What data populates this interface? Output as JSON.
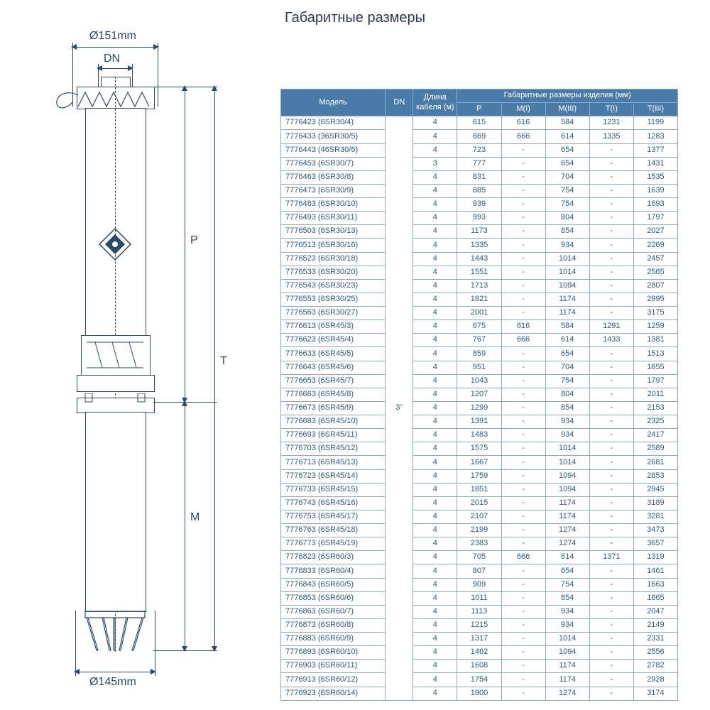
{
  "title": "Габаритные размеры",
  "diagram": {
    "diameter_top": "Ø151mm",
    "dn_label": "DN",
    "diameter_bottom": "Ø145mm",
    "dim_P": "P",
    "dim_T": "T",
    "dim_M": "M"
  },
  "table": {
    "header": {
      "model": "Модель",
      "dn": "DN",
      "cable": "Длина\nкабеля (м)",
      "dims_group": "Габаритные размеры изделия (мм)",
      "p": "P",
      "m1": "M(I)",
      "m3": "M(III)",
      "t1": "T(I)",
      "t3": "T(III)"
    },
    "dn_value": "3\"",
    "rows": [
      {
        "model": "7776423 (6SR30/4)",
        "cable": "4",
        "p": "615",
        "m1": "616",
        "m3": "584",
        "t1": "1231",
        "t3": "1199"
      },
      {
        "model": "7776433 (36SR30/5)",
        "cable": "4",
        "p": "669",
        "m1": "666",
        "m3": "614",
        "t1": "1335",
        "t3": "1283"
      },
      {
        "model": "7776443 (46SR30/6)",
        "cable": "4",
        "p": "723",
        "m1": "-",
        "m3": "654",
        "t1": "-",
        "t3": "1377"
      },
      {
        "model": "7776453 (6SR30/7)",
        "cable": "3",
        "p": "777",
        "m1": "-",
        "m3": "654",
        "t1": "-",
        "t3": "1431"
      },
      {
        "model": "7776463 (6SR30/8)",
        "cable": "4",
        "p": "831",
        "m1": "-",
        "m3": "704",
        "t1": "-",
        "t3": "1535"
      },
      {
        "model": "7776473 (6SR30/9)",
        "cable": "4",
        "p": "885",
        "m1": "-",
        "m3": "754",
        "t1": "-",
        "t3": "1639"
      },
      {
        "model": "7776483 (6SR30/10)",
        "cable": "4",
        "p": "939",
        "m1": "-",
        "m3": "754",
        "t1": "-",
        "t3": "1693"
      },
      {
        "model": "7776493 (6SR30/11)",
        "cable": "4",
        "p": "993",
        "m1": "-",
        "m3": "804",
        "t1": "-",
        "t3": "1797"
      },
      {
        "model": "7776503 (6SR30/13)",
        "cable": "4",
        "p": "1173",
        "m1": "-",
        "m3": "854",
        "t1": "-",
        "t3": "2027"
      },
      {
        "model": "7776513 (6SR30/16)",
        "cable": "4",
        "p": "1335",
        "m1": "-",
        "m3": "934",
        "t1": "-",
        "t3": "2269"
      },
      {
        "model": "7776523 (6SR30/18)",
        "cable": "4",
        "p": "1443",
        "m1": "-",
        "m3": "1014",
        "t1": "-",
        "t3": "2457"
      },
      {
        "model": "7776533 (6SR30/20)",
        "cable": "4",
        "p": "1551",
        "m1": "-",
        "m3": "1014",
        "t1": "-",
        "t3": "2565"
      },
      {
        "model": "7776543 (6SR30/23)",
        "cable": "4",
        "p": "1713",
        "m1": "-",
        "m3": "1094",
        "t1": "-",
        "t3": "2807"
      },
      {
        "model": "7776553 (6SR30/25)",
        "cable": "4",
        "p": "1821",
        "m1": "-",
        "m3": "1174",
        "t1": "-",
        "t3": "2995"
      },
      {
        "model": "7776563 (6SR30/27)",
        "cable": "4",
        "p": "2001",
        "m1": "-",
        "m3": "1174",
        "t1": "-",
        "t3": "3175"
      },
      {
        "model": "7776613 (6SR45/3)",
        "cable": "4",
        "p": "675",
        "m1": "616",
        "m3": "584",
        "t1": "1291",
        "t3": "1259"
      },
      {
        "model": "7776623 (6SR45/4)",
        "cable": "4",
        "p": "767",
        "m1": "666",
        "m3": "614",
        "t1": "1433",
        "t3": "1381"
      },
      {
        "model": "7776633 (6SR45/5)",
        "cable": "4",
        "p": "859",
        "m1": "-",
        "m3": "654",
        "t1": "-",
        "t3": "1513"
      },
      {
        "model": "7776643 (6SR45/6)",
        "cable": "4",
        "p": "951",
        "m1": "-",
        "m3": "704",
        "t1": "-",
        "t3": "1655"
      },
      {
        "model": "7776653 (6SR45/7)",
        "cable": "4",
        "p": "1043",
        "m1": "-",
        "m3": "754",
        "t1": "-",
        "t3": "1797"
      },
      {
        "model": "7776663 (6SR45/8)",
        "cable": "4",
        "p": "1207",
        "m1": "-",
        "m3": "804",
        "t1": "-",
        "t3": "2011"
      },
      {
        "model": "7776673 (6SR45/9)",
        "cable": "4",
        "p": "1299",
        "m1": "-",
        "m3": "854",
        "t1": "-",
        "t3": "2153"
      },
      {
        "model": "7776683 (6SR45/10)",
        "cable": "4",
        "p": "1391",
        "m1": "-",
        "m3": "934",
        "t1": "-",
        "t3": "2325"
      },
      {
        "model": "7776693 (6SR45/11)",
        "cable": "4",
        "p": "1483",
        "m1": "-",
        "m3": "934",
        "t1": "-",
        "t3": "2417"
      },
      {
        "model": "7776703 (6SR45/12)",
        "cable": "4",
        "p": "1575",
        "m1": "-",
        "m3": "1014",
        "t1": "-",
        "t3": "2589"
      },
      {
        "model": "7776713 (6SR45/13)",
        "cable": "4",
        "p": "1667",
        "m1": "-",
        "m3": "1014",
        "t1": "-",
        "t3": "2681"
      },
      {
        "model": "7776723 (6SR45/14)",
        "cable": "4",
        "p": "1759",
        "m1": "-",
        "m3": "1094",
        "t1": "-",
        "t3": "2853"
      },
      {
        "model": "7776733 (6SR45/15)",
        "cable": "4",
        "p": "1851",
        "m1": "-",
        "m3": "1094",
        "t1": "-",
        "t3": "2945"
      },
      {
        "model": "7776743 (6SR45/16)",
        "cable": "4",
        "p": "2015",
        "m1": "-",
        "m3": "1174",
        "t1": "-",
        "t3": "3189"
      },
      {
        "model": "7776753 (6SR45/17)",
        "cable": "4",
        "p": "2107",
        "m1": "-",
        "m3": "1174",
        "t1": "-",
        "t3": "3281"
      },
      {
        "model": "7776763 (6SR45/18)",
        "cable": "4",
        "p": "2199",
        "m1": "-",
        "m3": "1274",
        "t1": "-",
        "t3": "3473"
      },
      {
        "model": "7776773 (6SR45/19)",
        "cable": "4",
        "p": "2383",
        "m1": "-",
        "m3": "1274",
        "t1": "-",
        "t3": "3657"
      },
      {
        "model": "7776823 (6SR60/3)",
        "cable": "4",
        "p": "705",
        "m1": "666",
        "m3": "614",
        "t1": "1371",
        "t3": "1319"
      },
      {
        "model": "7776833 (6SR60/4)",
        "cable": "4",
        "p": "807",
        "m1": "-",
        "m3": "654",
        "t1": "-",
        "t3": "1461"
      },
      {
        "model": "7776843 (6SR60/5)",
        "cable": "4",
        "p": "909",
        "m1": "-",
        "m3": "754",
        "t1": "-",
        "t3": "1663"
      },
      {
        "model": "7776853 (6SR60/6)",
        "cable": "4",
        "p": "1011",
        "m1": "-",
        "m3": "854",
        "t1": "-",
        "t3": "1865"
      },
      {
        "model": "7776863 (6SR60/7)",
        "cable": "4",
        "p": "1113",
        "m1": "-",
        "m3": "934",
        "t1": "-",
        "t3": "2047"
      },
      {
        "model": "7776873 (6SR60/8)",
        "cable": "4",
        "p": "1215",
        "m1": "-",
        "m3": "934",
        "t1": "-",
        "t3": "2149"
      },
      {
        "model": "7776883 (6SR60/9)",
        "cable": "4",
        "p": "1317",
        "m1": "-",
        "m3": "1014",
        "t1": "-",
        "t3": "2331"
      },
      {
        "model": "7776893 (6SR60/10)",
        "cable": "4",
        "p": "1462",
        "m1": "-",
        "m3": "1094",
        "t1": "-",
        "t3": "2556"
      },
      {
        "model": "7776903 (6SR60/11)",
        "cable": "4",
        "p": "1608",
        "m1": "-",
        "m3": "1174",
        "t1": "-",
        "t3": "2782"
      },
      {
        "model": "7776913 (6SR60/12)",
        "cable": "4",
        "p": "1754",
        "m1": "-",
        "m3": "1174",
        "t1": "-",
        "t3": "2928"
      },
      {
        "model": "7776923 (6SR60/14)",
        "cable": "4",
        "p": "1900",
        "m1": "-",
        "m3": "1274",
        "t1": "-",
        "t3": "3174"
      }
    ]
  }
}
